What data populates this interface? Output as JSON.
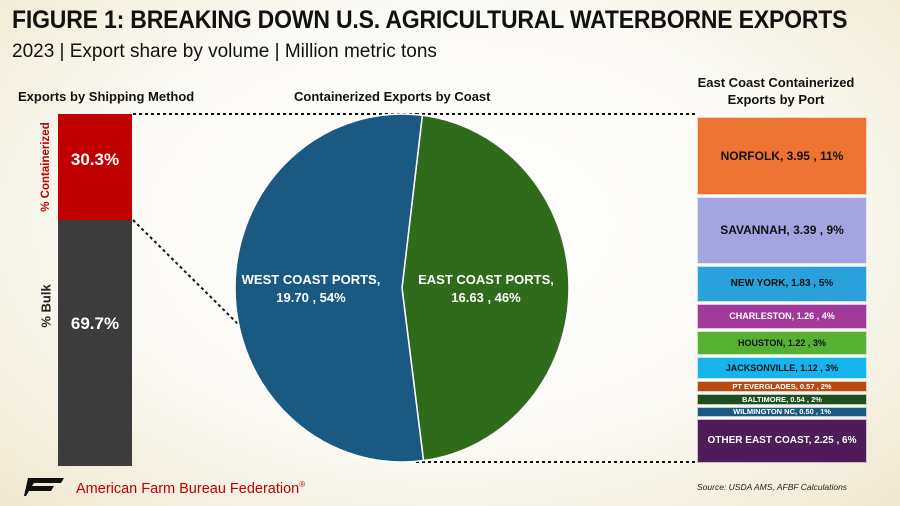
{
  "title": "FIGURE 1: BREAKING DOWN U.S. AGRICULTURAL WATERBORNE EXPORTS",
  "subtitle": "2023 | Export share by volume | Million metric tons",
  "footer": {
    "org": "American Farm Bureau Federation",
    "trademark": "®",
    "logo_text": "FB",
    "source": "Source: USDA AMS, AFBF Calculations"
  },
  "chart_data": [
    {
      "type": "bar",
      "title": "Exports by Shipping Method",
      "stacked": true,
      "categories": [
        "% Containerized",
        "% Bulk"
      ],
      "values": [
        30.3,
        69.7
      ],
      "value_labels": [
        "30.3%",
        "69.7%"
      ],
      "colors": [
        "#c00000",
        "#3c3c3c"
      ]
    },
    {
      "type": "pie",
      "title": "Containerized Exports by Coast",
      "slices": [
        {
          "name": "EAST COAST PORTS,",
          "value": 16.63,
          "value_label": "16.63",
          "share": 46,
          "share_label": "46%",
          "color": "#2e6b1a"
        },
        {
          "name": "WEST COAST PORTS,",
          "value": 19.7,
          "value_label": "19.70",
          "share": 54,
          "share_label": "54%",
          "color": "#1a5a82"
        }
      ]
    },
    {
      "type": "bar",
      "title": "East Coast Containerized Exports by Port",
      "stacked": true,
      "categories": [
        "NORFOLK",
        "SAVANNAH",
        "NEW YORK",
        "CHARLESTON",
        "HOUSTON",
        "JACKSONVILLE",
        "PT EVERGLADES",
        "BALTIMORE",
        "WILMINGTON NC",
        "OTHER EAST COAST"
      ],
      "values": [
        3.95,
        3.39,
        1.83,
        1.26,
        1.22,
        1.12,
        0.57,
        0.54,
        0.5,
        2.25
      ],
      "value_labels": [
        "3.95",
        "3.39",
        "1.83",
        "1.26",
        "1.22",
        "1.12",
        "0.57",
        "0.54",
        "0.50",
        "2.25"
      ],
      "shares": [
        11,
        9,
        5,
        4,
        3,
        3,
        2,
        2,
        1,
        6
      ],
      "share_labels": [
        "11%",
        "9%",
        "5%",
        "4%",
        "3%",
        "3%",
        "2%",
        "2%",
        "1%",
        "6%"
      ],
      "colors": [
        "#ed7332",
        "#a4a4e0",
        "#2aa1db",
        "#a13a9a",
        "#55b034",
        "#16b4ec",
        "#b84a14",
        "#1d4f1e",
        "#1a5a82",
        "#4f1c59"
      ]
    }
  ],
  "colors": {
    "title": "#111111",
    "brand_red": "#c00000",
    "connector": "#111111"
  }
}
